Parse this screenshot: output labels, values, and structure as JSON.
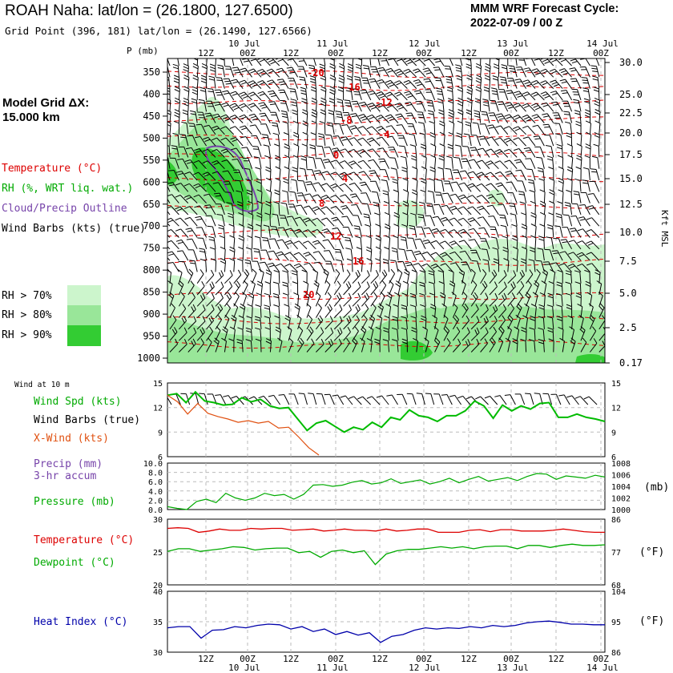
{
  "header": {
    "title": "ROAH Naha:  lat/lon = (26.1800, 127.6500)",
    "subtitle": "Grid Point (396, 181) lat/lon = (26.1490, 127.6566)",
    "cycle_line1": "MMM WRF Forecast Cycle:",
    "cycle_line2": "2022-07-09 / 00  Z"
  },
  "model_grid": {
    "line1": "Model Grid ΔX:",
    "line2": " 15.000 km"
  },
  "time_axis": {
    "hour_labels": [
      "12Z",
      "00Z",
      "12Z",
      "00Z",
      "12Z",
      "00Z",
      "12Z",
      "00Z",
      "12Z",
      "00Z"
    ],
    "date_labels": [
      "10 Jul",
      "11 Jul",
      "12 Jul",
      "13 Jul",
      "14 Jul"
    ]
  },
  "colors": {
    "temperature": "#dd0000",
    "rh": "#00bb00",
    "cloud": "#7744aa",
    "xwind": "#e05010",
    "pressure": "#00aa00",
    "heat_index": "#0000aa",
    "rh70": "#ccf5cc",
    "rh80": "#99e699",
    "rh90": "#33cc33"
  },
  "cross_section": {
    "p_axis_title": "P (mb)",
    "pressure_levels": [
      "350",
      "400",
      "450",
      "500",
      "550",
      "600",
      "650",
      "700",
      "750",
      "800",
      "850",
      "900",
      "950",
      "1000"
    ],
    "height_labels": [
      "30.0",
      "25.0",
      "22.5",
      "20.0",
      "17.5",
      "15.0",
      "12.5",
      "10.0",
      "7.5",
      "5.0",
      "2.5",
      "0.17"
    ],
    "height_axis_title": "Kft MSL",
    "legend": {
      "temperature": "Temperature (°C)",
      "rh": "RH (%, WRT liq. wat.)",
      "cloud": "Cloud/Precip Outline",
      "wind": "Wind Barbs (kts) (true)"
    },
    "rh_bins": [
      "RH > 70%",
      "RH > 80%",
      "RH > 90%"
    ],
    "isotherm_labels": [
      "-20",
      "-16",
      "-12",
      "-8",
      "-4",
      "0",
      "4",
      "8",
      "12",
      "16",
      "20"
    ]
  },
  "chart_data": [
    {
      "type": "line",
      "title": "Wind at 10 m",
      "series": [
        {
          "name": "Wind Spd (kts)",
          "values": [
            13.5,
            13.7,
            12.6,
            13.9,
            12.8,
            12.6,
            12.3,
            12.4,
            13.2,
            12.7,
            13.0,
            12.2,
            11.9,
            12.0,
            10.6,
            9.2,
            10.1,
            10.4,
            9.7,
            9.0,
            9.6,
            9.3,
            10.2,
            9.6,
            10.8,
            10.5,
            11.7,
            11.0,
            10.8,
            10.3,
            11.0,
            11.0,
            11.6,
            12.8,
            12.2,
            10.7,
            12.3,
            11.6,
            12.2,
            11.8,
            12.5,
            12.6,
            10.8,
            10.8,
            11.2,
            10.8,
            10.6,
            10.3
          ]
        },
        {
          "name": "X-Wind (kts)",
          "values": [
            13.5,
            12.7,
            11.2,
            12.5,
            11.3,
            10.9,
            10.6,
            10.2,
            10.4,
            10.1,
            10.3,
            9.5,
            9.6,
            8.4,
            7.1,
            6.2
          ]
        }
      ],
      "labels": {
        "speed": "Wind Spd (kts)",
        "barbs": "Wind Barbs (true)",
        "xwind": "X-Wind (kts)",
        "header": "Wind at 10 m"
      },
      "y_ticks": [
        "15",
        "12",
        "9",
        "6"
      ],
      "ylim": [
        6,
        15
      ]
    },
    {
      "type": "line",
      "title": "Pressure (mb)",
      "series": [
        {
          "name": "Pressure (mb)",
          "values": [
            1000.5,
            1000.2,
            1000.0,
            1001.4,
            1001.8,
            1001.2,
            1002.8,
            1002.0,
            1001.6,
            1002.0,
            1002.8,
            1002.4,
            1002.6,
            1001.8,
            1002.6,
            1004.2,
            1004.3,
            1004.0,
            1004.2,
            1004.7,
            1005.0,
            1004.4,
            1004.6,
            1005.3,
            1004.5,
            1004.8,
            1005.1,
            1004.4,
            1004.8,
            1005.4,
            1004.6,
            1005.2,
            1005.7,
            1004.9,
            1005.2,
            1005.5,
            1005.0,
            1005.7,
            1006.2,
            1006.1,
            1005.2,
            1005.8,
            1005.6,
            1005.4,
            1005.9,
            1005.6
          ]
        }
      ],
      "labels": {
        "precip": "Precip (mm)",
        "accum": "3-hr accum",
        "pressure": "Pressure (mb)",
        "unit": "(mb)"
      },
      "left_ticks": [
        "10.0",
        "8.0",
        "6.0",
        "4.0",
        "2.0",
        "0.0"
      ],
      "right_ticks": [
        "1008",
        "1006",
        "1004",
        "1002",
        "1000"
      ],
      "ylim": [
        1000,
        1008
      ]
    },
    {
      "type": "line",
      "title": "Temperature and Dewpoint (°C)",
      "series": [
        {
          "name": "Temperature (°C)",
          "values": [
            28.6,
            28.7,
            28.6,
            28.0,
            28.2,
            28.5,
            28.3,
            28.3,
            28.6,
            28.5,
            28.6,
            28.6,
            28.3,
            28.4,
            28.5,
            28.2,
            28.3,
            28.5,
            28.3,
            28.3,
            28.2,
            28.5,
            28.2,
            28.3,
            28.5,
            28.5,
            28.0,
            28.0,
            28.0,
            28.3,
            28.4,
            28.1,
            28.4,
            28.4,
            28.2,
            28.2,
            28.2,
            28.3,
            28.5,
            28.3,
            28.1,
            28.0,
            28.0
          ]
        },
        {
          "name": "Dewpoint (°C)",
          "values": [
            25.1,
            25.5,
            25.5,
            25.1,
            25.3,
            25.5,
            25.8,
            25.7,
            25.3,
            25.5,
            25.6,
            25.6,
            24.9,
            25.1,
            24.2,
            25.1,
            25.3,
            24.9,
            25.2,
            23.1,
            24.7,
            25.2,
            25.4,
            25.4,
            25.6,
            25.8,
            25.6,
            25.8,
            25.5,
            25.8,
            25.9,
            25.9,
            25.5,
            26.0,
            26.0,
            25.7,
            26.0,
            26.2,
            26.0,
            26.0,
            26.1
          ]
        }
      ],
      "labels": {
        "temperature": "Temperature (°C)",
        "dewpoint": "Dewpoint (°C)",
        "unit": "(°F)"
      },
      "left_ticks": [
        "30",
        "25",
        "20"
      ],
      "right_ticks": [
        "86",
        "77",
        "68"
      ],
      "ylim": [
        20,
        30
      ]
    },
    {
      "type": "line",
      "title": "Heat Index (°C)",
      "series": [
        {
          "name": "Heat Index (°C)",
          "values": [
            34.0,
            34.2,
            34.2,
            32.3,
            33.6,
            33.7,
            34.2,
            34.0,
            34.4,
            34.6,
            34.5,
            33.8,
            34.2,
            33.4,
            33.8,
            32.9,
            33.4,
            32.8,
            33.2,
            31.6,
            32.6,
            32.9,
            33.6,
            34.0,
            33.8,
            34.0,
            33.9,
            34.2,
            34.0,
            34.4,
            34.2,
            34.4,
            34.8,
            35.0,
            35.1,
            34.9,
            34.6,
            34.6,
            34.5,
            34.5
          ]
        }
      ],
      "labels": {
        "heat_index": "Heat Index (°C)",
        "unit": "(°F)"
      },
      "left_ticks": [
        "40",
        "35",
        "30"
      ],
      "right_ticks": [
        "104",
        "95",
        "86"
      ],
      "ylim": [
        30,
        40
      ]
    }
  ]
}
